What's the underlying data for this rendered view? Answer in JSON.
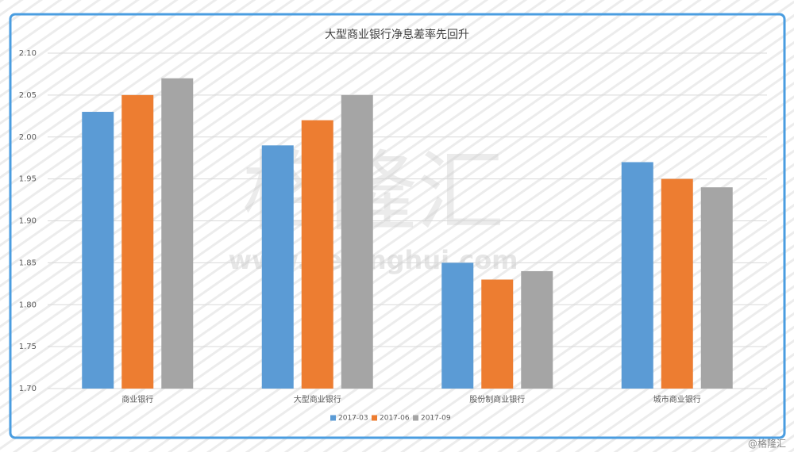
{
  "chart_data": {
    "type": "bar",
    "title": "大型商业银行净息差率先回升",
    "categories": [
      "商业银行",
      "大型商业银行",
      "股份制商业银行",
      "城市商业银行"
    ],
    "series": [
      {
        "name": "2017-03",
        "color": "#5b9bd5",
        "values": [
          2.03,
          1.99,
          1.85,
          1.97
        ]
      },
      {
        "name": "2017-06",
        "color": "#ed7d31",
        "values": [
          2.05,
          2.02,
          1.83,
          1.95
        ]
      },
      {
        "name": "2017-09",
        "color": "#a5a5a5",
        "values": [
          2.07,
          2.05,
          1.84,
          1.94
        ]
      }
    ],
    "ylim": [
      1.7,
      2.1
    ],
    "yticks": [
      {
        "value": 1.7,
        "label": "1.70"
      },
      {
        "value": 1.75,
        "label": "1.75"
      },
      {
        "value": 1.8,
        "label": "1.80"
      },
      {
        "value": 1.85,
        "label": "1.85"
      },
      {
        "value": 1.9,
        "label": "1.90"
      },
      {
        "value": 1.95,
        "label": "1.95"
      },
      {
        "value": 2.0,
        "label": "2.00"
      },
      {
        "value": 2.05,
        "label": "2.05"
      },
      {
        "value": 2.1,
        "label": "2.10"
      }
    ],
    "grid": true,
    "legend": "bottom",
    "watermark": "格隆汇",
    "watermark_url": "www.gelonghui.com",
    "credit": "@格隆汇"
  }
}
